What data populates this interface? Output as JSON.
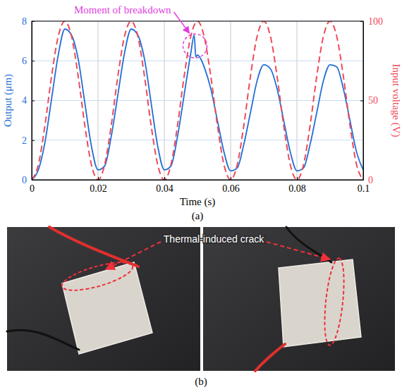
{
  "chart_data": {
    "type": "line",
    "panel_label": "(a)",
    "x_label": "Time (s)",
    "y_label": "Output (μm)",
    "y2_label": "Input voltage (V)",
    "xlim": [
      0,
      0.1
    ],
    "xticks": [
      0,
      0.02,
      0.04,
      0.06,
      0.08,
      0.1
    ],
    "ylim": [
      0,
      8
    ],
    "yticks": [
      0,
      2,
      4,
      6,
      8
    ],
    "y2lim": [
      0,
      100
    ],
    "y2ticks": [
      0,
      50,
      100
    ],
    "grid": true,
    "annotations": [
      {
        "text": "Moment of breakdown"
      }
    ],
    "series": [
      {
        "color": "#1f6fd6",
        "line_style": "solid",
        "x": [
          0,
          0.002,
          0.004,
          0.006,
          0.008,
          0.01,
          0.012,
          0.014,
          0.016,
          0.018,
          0.02,
          0.022,
          0.024,
          0.026,
          0.028,
          0.03,
          0.032,
          0.034,
          0.036,
          0.038,
          0.04,
          0.042,
          0.044,
          0.046,
          0.048,
          0.049,
          0.0495,
          0.05,
          0.051,
          0.052,
          0.054,
          0.056,
          0.058,
          0.06,
          0.062,
          0.064,
          0.066,
          0.068,
          0.07,
          0.072,
          0.074,
          0.076,
          0.078,
          0.08,
          0.082,
          0.084,
          0.086,
          0.088,
          0.09,
          0.092,
          0.094,
          0.096,
          0.098,
          0.1
        ],
        "values": [
          0,
          0.5,
          1.9,
          4.1,
          6.3,
          7.6,
          7.3,
          6.1,
          3.9,
          1.7,
          0.5,
          0.7,
          2.2,
          4.3,
          6.4,
          7.6,
          7.3,
          6.1,
          3.9,
          1.7,
          0.5,
          0.7,
          2.2,
          4.3,
          6.4,
          7.3,
          6.2,
          6.3,
          6.1,
          5.7,
          4.6,
          3.0,
          1.4,
          0.45,
          0.6,
          1.8,
          3.4,
          5.0,
          5.8,
          5.6,
          4.6,
          3.0,
          1.4,
          0.45,
          0.6,
          1.8,
          3.4,
          5.0,
          5.8,
          5.7,
          4.6,
          3.0,
          1.4,
          0.5
        ]
      },
      {
        "color": "#ef4a5a",
        "line_style": "dashed",
        "axis": "y2",
        "x": [
          0,
          0.002,
          0.004,
          0.006,
          0.008,
          0.01,
          0.012,
          0.014,
          0.016,
          0.018,
          0.02,
          0.022,
          0.024,
          0.026,
          0.028,
          0.03,
          0.032,
          0.034,
          0.036,
          0.038,
          0.04,
          0.042,
          0.044,
          0.046,
          0.048,
          0.05,
          0.052,
          0.054,
          0.056,
          0.058,
          0.06,
          0.062,
          0.064,
          0.066,
          0.068,
          0.07,
          0.072,
          0.074,
          0.076,
          0.078,
          0.08,
          0.082,
          0.084,
          0.086,
          0.088,
          0.09,
          0.092,
          0.094,
          0.096,
          0.098,
          0.1
        ],
        "values": [
          0,
          9.5,
          34.5,
          65.5,
          90.5,
          100,
          90.5,
          65.5,
          34.5,
          9.5,
          0,
          9.5,
          34.5,
          65.5,
          90.5,
          100,
          90.5,
          65.5,
          34.5,
          9.5,
          0,
          9.5,
          34.5,
          65.5,
          90.5,
          100,
          90.5,
          65.5,
          34.5,
          9.5,
          0,
          9.5,
          34.5,
          65.5,
          90.5,
          100,
          90.5,
          65.5,
          34.5,
          9.5,
          0,
          9.5,
          34.5,
          65.5,
          90.5,
          100,
          90.5,
          65.5,
          34.5,
          9.5,
          0
        ]
      }
    ]
  },
  "photo_panel": {
    "label": "(b)",
    "annotation": "Thermal-induced crack"
  }
}
